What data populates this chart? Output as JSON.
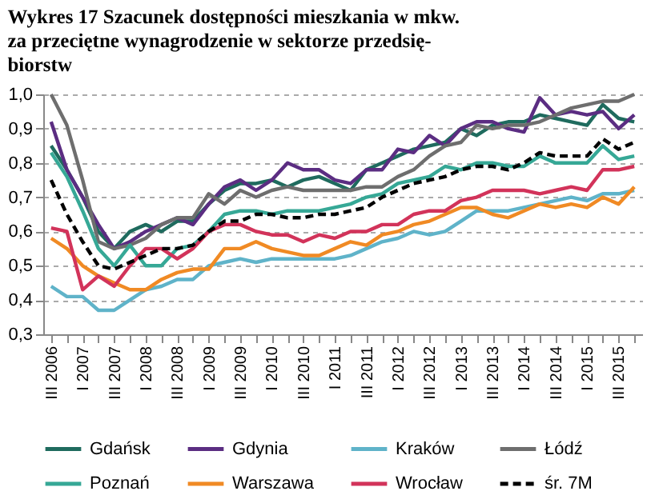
{
  "chart_data": {
    "type": "line",
    "title": "Wykres 17 Szacunek dostępności mieszkania w mkw.\nza przeciętne wynagrodzenie w sektorze przedsię-\nbiorstw",
    "categories": [
      "III 2006",
      null,
      "I 2007",
      null,
      "III 2007",
      null,
      "I 2008",
      null,
      "III 2008",
      null,
      "I 2009",
      null,
      "III 2009",
      null,
      "I 2010",
      null,
      "III 2010",
      null,
      "I 2011",
      null,
      "III 2011",
      null,
      "I 2012",
      null,
      "III 2012",
      null,
      "I 2013",
      null,
      "III 2013",
      null,
      "I 2014",
      null,
      "III 2014",
      null,
      "I 2015",
      null,
      "III 2015",
      null
    ],
    "ylim": [
      0.3,
      1.0
    ],
    "yticks": [
      {
        "value": 0.3,
        "label": "0,3"
      },
      {
        "value": 0.4,
        "label": "0,4"
      },
      {
        "value": 0.5,
        "label": "0,5"
      },
      {
        "value": 0.6,
        "label": "0,6"
      },
      {
        "value": 0.7,
        "label": "0,7"
      },
      {
        "value": 0.8,
        "label": "0,8"
      },
      {
        "value": 0.9,
        "label": "0,9"
      },
      {
        "value": 1.0,
        "label": "1,0"
      }
    ],
    "grid": "y",
    "legend": "bottom",
    "marker": "none",
    "series": [
      {
        "name": "Gdańsk",
        "color": "#1f6b5e",
        "line_style": "solid",
        "values": [
          0.85,
          0.78,
          0.7,
          0.6,
          0.55,
          0.6,
          0.62,
          0.6,
          0.63,
          0.63,
          0.68,
          0.72,
          0.74,
          0.74,
          0.75,
          0.73,
          0.75,
          0.76,
          0.74,
          0.72,
          0.78,
          0.8,
          0.82,
          0.84,
          0.85,
          0.86,
          0.9,
          0.88,
          0.91,
          0.92,
          0.92,
          0.94,
          0.93,
          0.92,
          0.91,
          0.97,
          0.93,
          0.92
        ]
      },
      {
        "name": "Gdynia",
        "color": "#5b2d82",
        "line_style": "solid",
        "values": [
          0.92,
          0.78,
          0.7,
          0.62,
          0.55,
          0.57,
          0.6,
          0.62,
          0.64,
          0.62,
          0.68,
          0.73,
          0.75,
          0.72,
          0.75,
          0.8,
          0.78,
          0.78,
          0.75,
          0.74,
          0.78,
          0.78,
          0.84,
          0.83,
          0.88,
          0.85,
          0.9,
          0.92,
          0.92,
          0.9,
          0.89,
          0.99,
          0.94,
          0.95,
          0.94,
          0.95,
          0.9,
          0.94
        ]
      },
      {
        "name": "Kraków",
        "color": "#5fb3c9",
        "line_style": "solid",
        "values": [
          0.44,
          0.41,
          0.41,
          0.37,
          0.37,
          0.4,
          0.43,
          0.44,
          0.46,
          0.46,
          0.5,
          0.51,
          0.52,
          0.51,
          0.52,
          0.52,
          0.52,
          0.52,
          0.52,
          0.53,
          0.55,
          0.57,
          0.58,
          0.6,
          0.59,
          0.6,
          0.63,
          0.66,
          0.66,
          0.66,
          0.67,
          0.68,
          0.69,
          0.7,
          0.69,
          0.71,
          0.71,
          0.72
        ]
      },
      {
        "name": "Łódź",
        "color": "#6e6e6e",
        "line_style": "solid",
        "values": [
          1.0,
          0.91,
          0.75,
          0.57,
          0.55,
          0.56,
          0.58,
          0.62,
          0.64,
          0.64,
          0.71,
          0.68,
          0.72,
          0.7,
          0.72,
          0.73,
          0.72,
          0.72,
          0.72,
          0.72,
          0.73,
          0.73,
          0.76,
          0.78,
          0.82,
          0.85,
          0.86,
          0.91,
          0.9,
          0.91,
          0.91,
          0.92,
          0.94,
          0.96,
          0.97,
          0.98,
          0.98,
          1.0
        ]
      },
      {
        "name": "Poznań",
        "color": "#36a896",
        "line_style": "solid",
        "values": [
          0.83,
          0.76,
          0.66,
          0.55,
          0.5,
          0.56,
          0.5,
          0.5,
          0.55,
          0.56,
          0.6,
          0.65,
          0.66,
          0.66,
          0.65,
          0.66,
          0.66,
          0.66,
          0.67,
          0.68,
          0.7,
          0.71,
          0.74,
          0.75,
          0.76,
          0.79,
          0.78,
          0.8,
          0.8,
          0.79,
          0.79,
          0.82,
          0.8,
          0.8,
          0.8,
          0.85,
          0.81,
          0.82
        ]
      },
      {
        "name": "Warszawa",
        "color": "#f08a24",
        "line_style": "solid",
        "values": [
          0.58,
          0.55,
          0.5,
          0.47,
          0.45,
          0.43,
          0.43,
          0.46,
          0.48,
          0.49,
          0.49,
          0.55,
          0.55,
          0.57,
          0.55,
          0.54,
          0.53,
          0.53,
          0.55,
          0.57,
          0.56,
          0.59,
          0.6,
          0.62,
          0.63,
          0.65,
          0.67,
          0.67,
          0.65,
          0.64,
          0.66,
          0.68,
          0.67,
          0.68,
          0.67,
          0.7,
          0.68,
          0.73
        ]
      },
      {
        "name": "Wrocław",
        "color": "#d2335a",
        "line_style": "solid",
        "values": [
          0.61,
          0.6,
          0.43,
          0.47,
          0.44,
          0.5,
          0.55,
          0.55,
          0.52,
          0.55,
          0.6,
          0.62,
          0.62,
          0.6,
          0.59,
          0.59,
          0.57,
          0.59,
          0.58,
          0.6,
          0.6,
          0.62,
          0.62,
          0.65,
          0.66,
          0.66,
          0.69,
          0.7,
          0.72,
          0.72,
          0.72,
          0.71,
          0.72,
          0.73,
          0.72,
          0.78,
          0.78,
          0.79
        ]
      },
      {
        "name": "śr. 7M",
        "color": "#000000",
        "line_style": "dashed",
        "values": [
          0.75,
          0.65,
          0.57,
          0.5,
          0.49,
          0.51,
          0.53,
          0.55,
          0.55,
          0.56,
          0.6,
          0.63,
          0.63,
          0.65,
          0.65,
          0.64,
          0.64,
          0.65,
          0.65,
          0.66,
          0.67,
          0.7,
          0.72,
          0.74,
          0.75,
          0.76,
          0.78,
          0.79,
          0.79,
          0.78,
          0.8,
          0.83,
          0.82,
          0.82,
          0.82,
          0.87,
          0.84,
          0.86
        ]
      }
    ]
  }
}
